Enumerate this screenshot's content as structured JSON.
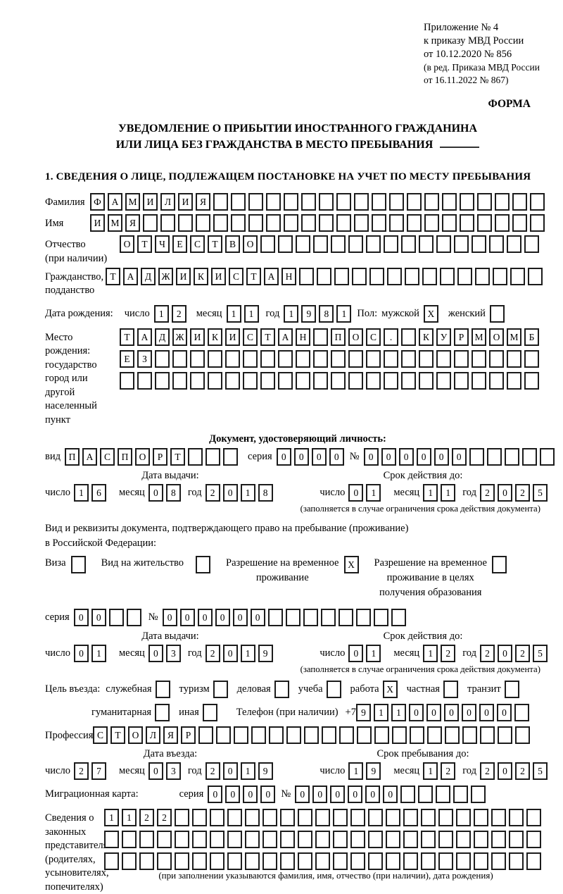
{
  "date_labels": {
    "day": "число",
    "month": "месяц",
    "year": "год"
  },
  "header": {
    "appendix_lines": [
      "Приложение № 4",
      "к приказу МВД России",
      "от 10.12.2020 № 856"
    ],
    "amendment_lines": [
      "(в ред. Приказа МВД России",
      "от 16.11.2022 № 867)"
    ],
    "form_label": "ФОРМА"
  },
  "title": {
    "line1": "УВЕДОМЛЕНИЕ О ПРИБЫТИИ ИНОСТРАННОГО ГРАЖДАНИНА",
    "line2": "ИЛИ ЛИЦА БЕЗ ГРАЖДАНСТВА В МЕСТО ПРЕБЫВАНИЯ"
  },
  "section1_heading": "1. СВЕДЕНИЯ О ЛИЦЕ, ПОДЛЕЖАЩЕМ ПОСТАНОВКЕ НА УЧЕТ ПО МЕСТУ ПРЕБЫВАНИЯ",
  "person": {
    "surname": {
      "label": "Фамилия",
      "value": "ФАМИЛИЯ",
      "length": 26
    },
    "name": {
      "label": "Имя",
      "value": "ИМЯ",
      "length": 26
    },
    "patronymic": {
      "label_line1": "Отчество",
      "label_line2": "(при наличии)",
      "value": "ОТЧЕСТВО",
      "length": 24
    },
    "citizenship": {
      "label_line1": "Гражданство,",
      "label_line2": "подданство",
      "value": "ТАДЖИКИСТАН",
      "length": 25
    },
    "birth_date": {
      "label": "Дата рождения:",
      "day": {
        "value": "12",
        "length": 2
      },
      "month": {
        "value": "11",
        "length": 2
      },
      "year": {
        "value": "1981",
        "length": 4
      }
    },
    "gender": {
      "label": "Пол:",
      "male_label": "мужской",
      "male_cell": {
        "value": "X",
        "length": 1
      },
      "female_label": "женский",
      "female_cell": {
        "value": "",
        "length": 1
      }
    },
    "birth_place": {
      "label_line1": "Место рождения:",
      "label_line2": "государство",
      "label_line3": "город или другой",
      "label_line4": "населенный пункт",
      "row1": {
        "value": "ТАДЖИКИСТАН ПОС. КУРМОМБ",
        "length": 24
      },
      "row2": {
        "value": "ЕЗ",
        "length": 24
      },
      "row3": {
        "value": "",
        "length": 24
      }
    }
  },
  "identity_doc": {
    "heading": "Документ, удостоверяющий личность:",
    "kind_label": "вид",
    "kind": {
      "value": "ПАСПОРТ",
      "length": 10
    },
    "series_label": "серия",
    "series": {
      "value": "0000",
      "length": 4
    },
    "number_label": "№",
    "number": {
      "value": "000000",
      "length": 11
    },
    "issue_heading": "Дата выдачи:",
    "issue": {
      "day": {
        "value": "16",
        "length": 2
      },
      "month": {
        "value": "08",
        "length": 2
      },
      "year": {
        "value": "2018",
        "length": 4
      }
    },
    "valid_heading": "Срок действия до:",
    "valid": {
      "day": {
        "value": "01",
        "length": 2
      },
      "month": {
        "value": "11",
        "length": 2
      },
      "year": {
        "value": "2025",
        "length": 4
      }
    },
    "valid_note": "(заполняется в случае ограничения срока действия документа)"
  },
  "residence_doc": {
    "intro_line1": "Вид и реквизиты документа, подтверждающего право на пребывание (проживание)",
    "intro_line2": "в Российской Федерации:",
    "opt_visa": {
      "label": "Виза",
      "cell": {
        "value": "",
        "length": 1
      }
    },
    "opt_residence_permit": {
      "label": "Вид на жительство",
      "cell": {
        "value": "",
        "length": 1
      }
    },
    "opt_temp_residence": {
      "line1": "Разрешение на временное",
      "line2": "проживание",
      "cell": {
        "value": "X",
        "length": 1
      }
    },
    "opt_temp_residence_edu": {
      "line1": "Разрешение на временное",
      "line2": "проживание в целях",
      "line3": "получения образования",
      "cell": {
        "value": "",
        "length": 1
      }
    },
    "series_label": "серия",
    "series": {
      "value": "00",
      "length": 4
    },
    "number_label": "№",
    "number": {
      "value": "000000",
      "length": 14
    },
    "issue_heading": "Дата выдачи:",
    "issue": {
      "day": {
        "value": "01",
        "length": 2
      },
      "month": {
        "value": "03",
        "length": 2
      },
      "year": {
        "value": "2019",
        "length": 4
      }
    },
    "valid_heading": "Срок действия до:",
    "valid": {
      "day": {
        "value": "01",
        "length": 2
      },
      "month": {
        "value": "12",
        "length": 2
      },
      "year": {
        "value": "2025",
        "length": 4
      }
    },
    "valid_note": "(заполняется в случае ограничения срока действия документа)"
  },
  "visit": {
    "purpose_label": "Цель въезда:",
    "purposes_row1": [
      {
        "label": "служебная",
        "cell": {
          "value": "",
          "length": 1
        }
      },
      {
        "label": "туризм",
        "cell": {
          "value": "",
          "length": 1
        }
      },
      {
        "label": "деловая",
        "cell": {
          "value": "",
          "length": 1
        }
      },
      {
        "label": "учеба",
        "cell": {
          "value": "",
          "length": 1
        }
      },
      {
        "label": "работа",
        "cell": {
          "value": "X",
          "length": 1
        }
      },
      {
        "label": "частная",
        "cell": {
          "value": "",
          "length": 1
        }
      },
      {
        "label": "транзит",
        "cell": {
          "value": "",
          "length": 1
        }
      }
    ],
    "purposes_row2": [
      {
        "label": "гуманитарная",
        "cell": {
          "value": "",
          "length": 1
        }
      },
      {
        "label": "иная",
        "cell": {
          "value": "",
          "length": 1
        }
      }
    ],
    "phone_label": "Телефон (при наличии)",
    "phone_prefix": "+7",
    "phone": {
      "value": "911000000",
      "length": 10
    },
    "profession_label": "Профессия",
    "profession": {
      "value": "СТОЛЯР",
      "length": 25
    },
    "entry_heading": "Дата въезда:",
    "entry": {
      "day": {
        "value": "27",
        "length": 2
      },
      "month": {
        "value": "03",
        "length": 2
      },
      "year": {
        "value": "2019",
        "length": 4
      }
    },
    "stay_heading": "Срок пребывания до:",
    "stay": {
      "day": {
        "value": "19",
        "length": 2
      },
      "month": {
        "value": "12",
        "length": 2
      },
      "year": {
        "value": "2025",
        "length": 4
      }
    },
    "migration_card_label": "Миграционная карта:",
    "mc_series_label": "серия",
    "mc_series": {
      "value": "0000",
      "length": 4
    },
    "mc_number_label": "№",
    "mc_number": {
      "value": "000000",
      "length": 11
    }
  },
  "representatives": {
    "label_line1": "Сведения о",
    "label_line2": "законных",
    "label_line3": "представителях",
    "label_line4": "(родителях,",
    "label_line5": "усыновителях,",
    "label_line6": "попечителях)",
    "row1": {
      "value": "1122",
      "length": 25
    },
    "row2": {
      "value": "",
      "length": 25
    },
    "row3": {
      "value": "",
      "length": 25
    },
    "note": "(при заполнении указываются фамилия, имя, отчество (при наличии), дата рождения)"
  }
}
